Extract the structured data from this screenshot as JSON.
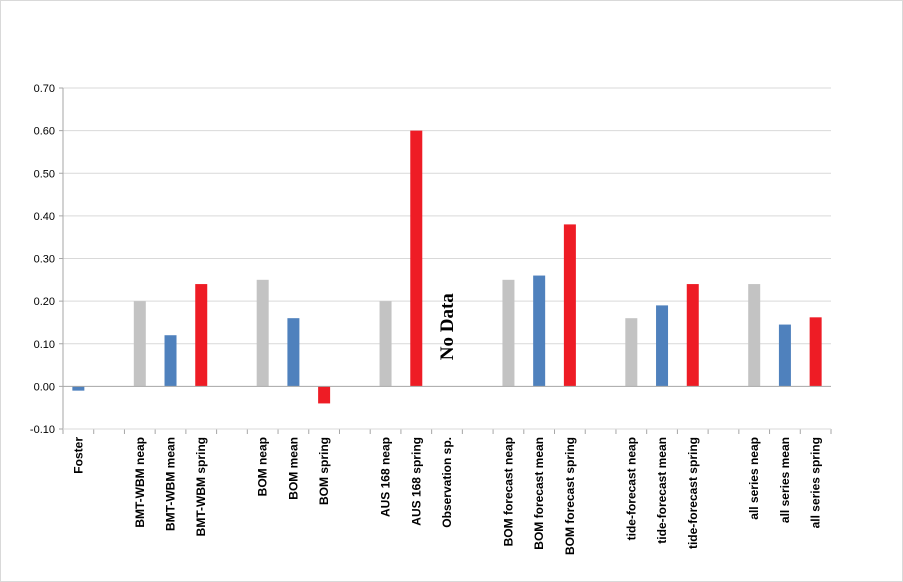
{
  "chart_data": {
    "type": "bar",
    "title": "",
    "xlabel": "",
    "ylabel": "",
    "ylim": [
      -0.1,
      0.7
    ],
    "yticks": [
      "-0.10",
      "0.00",
      "0.10",
      "0.20",
      "0.30",
      "0.40",
      "0.50",
      "0.60",
      "0.70"
    ],
    "grid": true,
    "legend": "none",
    "colors": {
      "neap": "#c3c3c3",
      "mean": "#4f81bd",
      "spring": "#ee1c25",
      "foster": "#4f81bd",
      "grid": "#d9d9d9",
      "axis": "#a6a6a6"
    },
    "annotation": "No Data",
    "categories": [
      "Foster",
      "",
      "BMT-WBM neap",
      "BMT-WBM mean",
      "BMT-WBM spring",
      "",
      "BOM neap",
      "BOM mean",
      "BOM spring",
      "",
      "AUS 168 neap",
      "AUS 168 spring",
      "Observation sp.",
      "",
      "BOM forecast neap",
      "BOM forecast mean",
      "BOM forecast spring",
      "",
      "tide-forecast neap",
      "tide-forecast mean",
      "tide-forecast spring",
      "",
      "all series neap",
      "all series mean",
      "all series spring"
    ],
    "values": [
      -0.01,
      null,
      0.2,
      0.12,
      0.24,
      null,
      0.25,
      0.16,
      -0.04,
      null,
      0.2,
      0.6,
      null,
      null,
      0.25,
      0.26,
      0.38,
      null,
      0.16,
      0.19,
      0.24,
      null,
      0.24,
      0.145,
      0.162
    ],
    "bar_kind": [
      "foster",
      "",
      "neap",
      "mean",
      "spring",
      "",
      "neap",
      "mean",
      "spring",
      "",
      "neap",
      "spring",
      "",
      "",
      "neap",
      "mean",
      "spring",
      "",
      "neap",
      "mean",
      "spring",
      "",
      "neap",
      "mean",
      "spring"
    ]
  }
}
